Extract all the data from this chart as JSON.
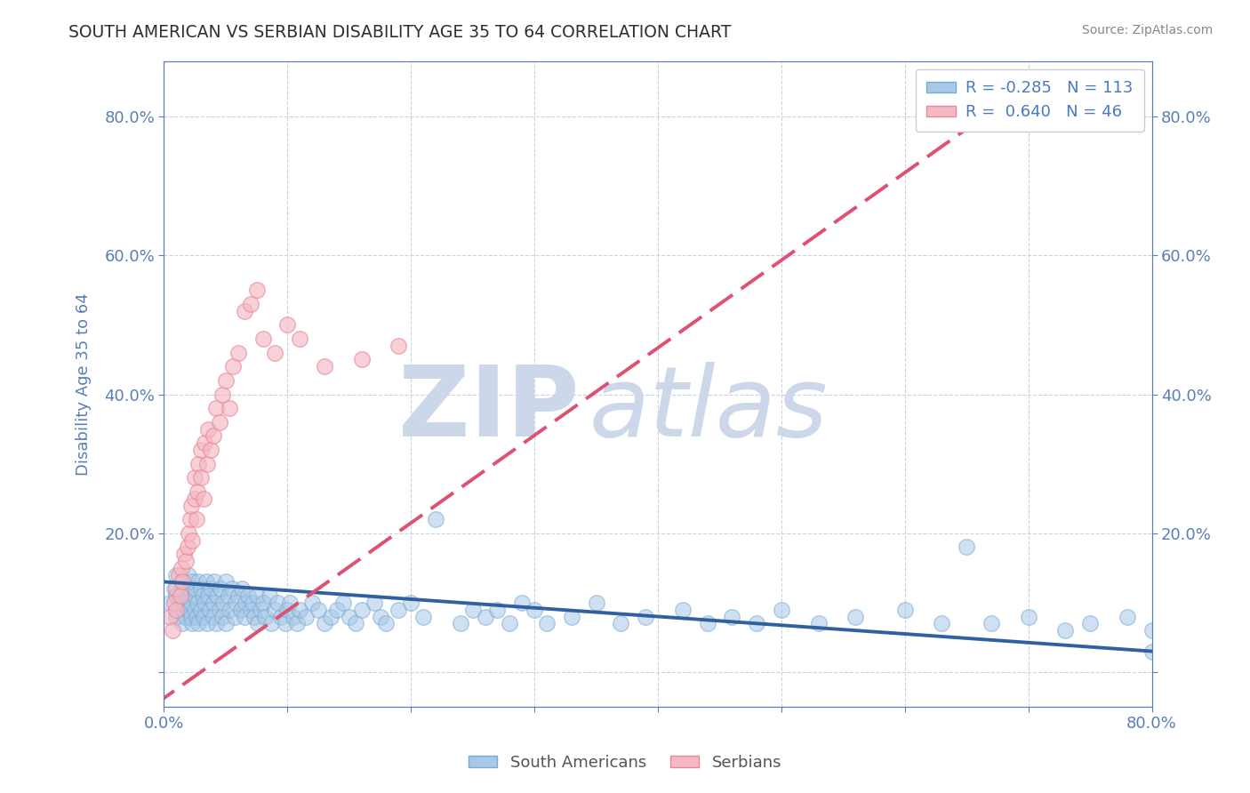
{
  "title": "SOUTH AMERICAN VS SERBIAN DISABILITY AGE 35 TO 64 CORRELATION CHART",
  "source": "Source: ZipAtlas.com",
  "ylabel": "Disability Age 35 to 64",
  "xlim": [
    0.0,
    0.8
  ],
  "ylim": [
    -0.05,
    0.88
  ],
  "xticks": [
    0.0,
    0.1,
    0.2,
    0.3,
    0.4,
    0.5,
    0.6,
    0.7,
    0.8
  ],
  "xticklabels": [
    "0.0%",
    "",
    "",
    "",
    "",
    "",
    "",
    "",
    "80.0%"
  ],
  "yticks": [
    0.0,
    0.2,
    0.4,
    0.6,
    0.8
  ],
  "yticklabels_left": [
    "",
    "20.0%",
    "40.0%",
    "60.0%",
    "80.0%"
  ],
  "yticklabels_right": [
    "",
    "20.0%",
    "40.0%",
    "60.0%",
    "80.0%"
  ],
  "blue_color": "#a8c8e8",
  "pink_color": "#f5b8c4",
  "blue_edge_color": "#7aaad0",
  "pink_edge_color": "#e88898",
  "blue_line_color": "#3060a0",
  "pink_line_color": "#e05070",
  "watermark": "ZIPatlas",
  "watermark_color": "#ccd8ea",
  "legend_text_color": "#4a7ac0",
  "title_color": "#303030",
  "source_color": "#888888",
  "axis_color": "#5a7fb5",
  "tick_color": "#5a7fb5",
  "grid_color": "#c8d4e4",
  "blue_line_x": [
    0.0,
    0.8
  ],
  "blue_line_y": [
    0.13,
    0.03
  ],
  "pink_line_x": [
    -0.01,
    0.68
  ],
  "pink_line_y": [
    -0.05,
    0.82
  ],
  "blue_scatter_x": [
    0.005,
    0.008,
    0.01,
    0.01,
    0.01,
    0.012,
    0.014,
    0.015,
    0.015,
    0.016,
    0.018,
    0.018,
    0.02,
    0.02,
    0.02,
    0.022,
    0.022,
    0.023,
    0.023,
    0.025,
    0.025,
    0.025,
    0.026,
    0.027,
    0.028,
    0.028,
    0.03,
    0.03,
    0.031,
    0.032,
    0.033,
    0.034,
    0.035,
    0.036,
    0.037,
    0.038,
    0.04,
    0.04,
    0.041,
    0.042,
    0.043,
    0.045,
    0.046,
    0.047,
    0.048,
    0.05,
    0.05,
    0.052,
    0.053,
    0.055,
    0.057,
    0.058,
    0.06,
    0.062,
    0.063,
    0.065,
    0.066,
    0.068,
    0.07,
    0.072,
    0.073,
    0.075,
    0.076,
    0.078,
    0.08,
    0.082,
    0.085,
    0.087,
    0.09,
    0.092,
    0.095,
    0.098,
    0.1,
    0.102,
    0.105,
    0.108,
    0.11,
    0.115,
    0.12,
    0.125,
    0.13,
    0.135,
    0.14,
    0.145,
    0.15,
    0.155,
    0.16,
    0.17,
    0.175,
    0.18,
    0.19,
    0.2,
    0.21,
    0.22,
    0.24,
    0.25,
    0.26,
    0.27,
    0.28,
    0.29,
    0.3,
    0.31,
    0.33,
    0.35,
    0.37,
    0.39,
    0.42,
    0.44,
    0.46,
    0.48,
    0.5,
    0.53,
    0.56,
    0.6,
    0.63,
    0.65,
    0.67,
    0.7,
    0.73,
    0.75,
    0.78,
    0.8,
    0.8
  ],
  "blue_scatter_y": [
    0.1,
    0.12,
    0.08,
    0.11,
    0.14,
    0.09,
    0.13,
    0.07,
    0.12,
    0.1,
    0.11,
    0.08,
    0.12,
    0.09,
    0.14,
    0.1,
    0.08,
    0.13,
    0.07,
    0.11,
    0.09,
    0.12,
    0.08,
    0.1,
    0.13,
    0.07,
    0.12,
    0.09,
    0.11,
    0.08,
    0.1,
    0.13,
    0.07,
    0.11,
    0.09,
    0.12,
    0.1,
    0.08,
    0.13,
    0.07,
    0.11,
    0.09,
    0.12,
    0.08,
    0.1,
    0.13,
    0.07,
    0.11,
    0.09,
    0.12,
    0.08,
    0.1,
    0.11,
    0.09,
    0.12,
    0.08,
    0.1,
    0.11,
    0.09,
    0.1,
    0.08,
    0.11,
    0.07,
    0.09,
    0.1,
    0.08,
    0.11,
    0.07,
    0.09,
    0.1,
    0.08,
    0.07,
    0.09,
    0.1,
    0.08,
    0.07,
    0.09,
    0.08,
    0.1,
    0.09,
    0.07,
    0.08,
    0.09,
    0.1,
    0.08,
    0.07,
    0.09,
    0.1,
    0.08,
    0.07,
    0.09,
    0.1,
    0.08,
    0.22,
    0.07,
    0.09,
    0.08,
    0.09,
    0.07,
    0.1,
    0.09,
    0.07,
    0.08,
    0.1,
    0.07,
    0.08,
    0.09,
    0.07,
    0.08,
    0.07,
    0.09,
    0.07,
    0.08,
    0.09,
    0.07,
    0.18,
    0.07,
    0.08,
    0.06,
    0.07,
    0.08,
    0.03,
    0.06
  ],
  "pink_scatter_x": [
    0.005,
    0.007,
    0.008,
    0.01,
    0.01,
    0.012,
    0.013,
    0.014,
    0.015,
    0.016,
    0.018,
    0.019,
    0.02,
    0.021,
    0.022,
    0.023,
    0.025,
    0.025,
    0.026,
    0.027,
    0.028,
    0.03,
    0.03,
    0.032,
    0.033,
    0.035,
    0.036,
    0.038,
    0.04,
    0.042,
    0.045,
    0.047,
    0.05,
    0.053,
    0.056,
    0.06,
    0.065,
    0.07,
    0.075,
    0.08,
    0.09,
    0.1,
    0.11,
    0.13,
    0.16,
    0.19
  ],
  "pink_scatter_y": [
    0.08,
    0.06,
    0.1,
    0.12,
    0.09,
    0.14,
    0.11,
    0.15,
    0.13,
    0.17,
    0.16,
    0.18,
    0.2,
    0.22,
    0.24,
    0.19,
    0.25,
    0.28,
    0.22,
    0.26,
    0.3,
    0.28,
    0.32,
    0.25,
    0.33,
    0.3,
    0.35,
    0.32,
    0.34,
    0.38,
    0.36,
    0.4,
    0.42,
    0.38,
    0.44,
    0.46,
    0.52,
    0.53,
    0.55,
    0.48,
    0.46,
    0.5,
    0.48,
    0.44,
    0.45,
    0.47
  ]
}
